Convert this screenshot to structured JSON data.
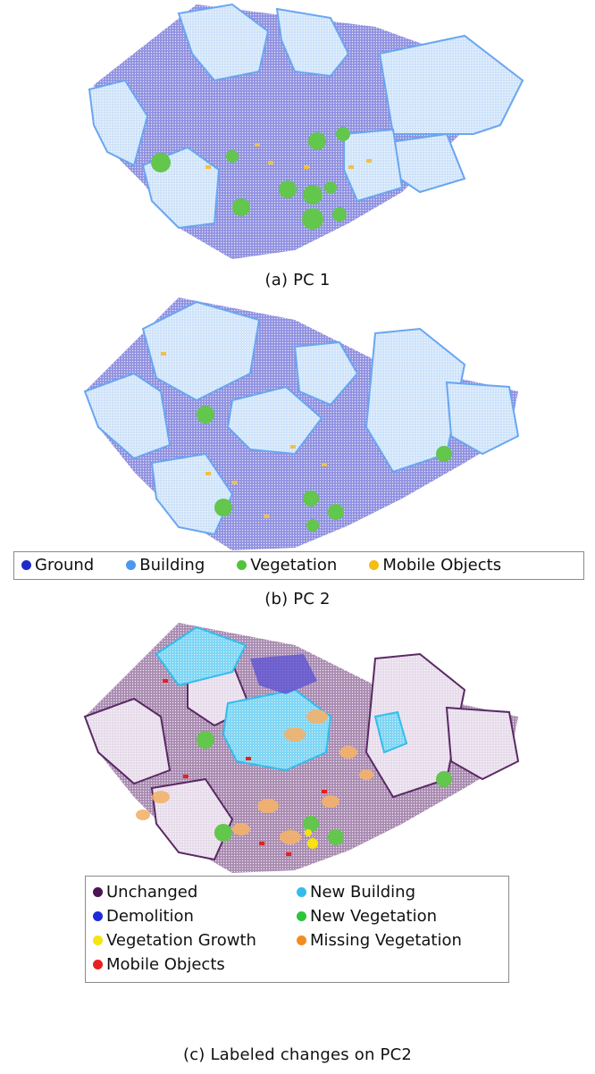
{
  "figure": {
    "panel_a": {
      "caption": "(a) PC 1"
    },
    "panel_b": {
      "caption": "(b) PC 2",
      "legend": [
        {
          "label": "Ground",
          "color": "#1f2bc9"
        },
        {
          "label": "Building",
          "color": "#4c97f0"
        },
        {
          "label": "Vegetation",
          "color": "#52c43a"
        },
        {
          "label": "Mobile Objects",
          "color": "#f5bd12"
        }
      ]
    },
    "panel_c": {
      "caption": "(c) Labeled changes on PC2",
      "legend": [
        {
          "label": "Unchanged",
          "color": "#4a1552"
        },
        {
          "label": "New Building",
          "color": "#33bdec"
        },
        {
          "label": "Demolition",
          "color": "#1f2bd9"
        },
        {
          "label": "New Vegetation",
          "color": "#2bc43a"
        },
        {
          "label": "Vegetation Growth",
          "color": "#f5e312"
        },
        {
          "label": "Missing Vegetation",
          "color": "#f58c1f"
        },
        {
          "label": "Mobile Objects",
          "color": "#e82020"
        }
      ]
    }
  }
}
